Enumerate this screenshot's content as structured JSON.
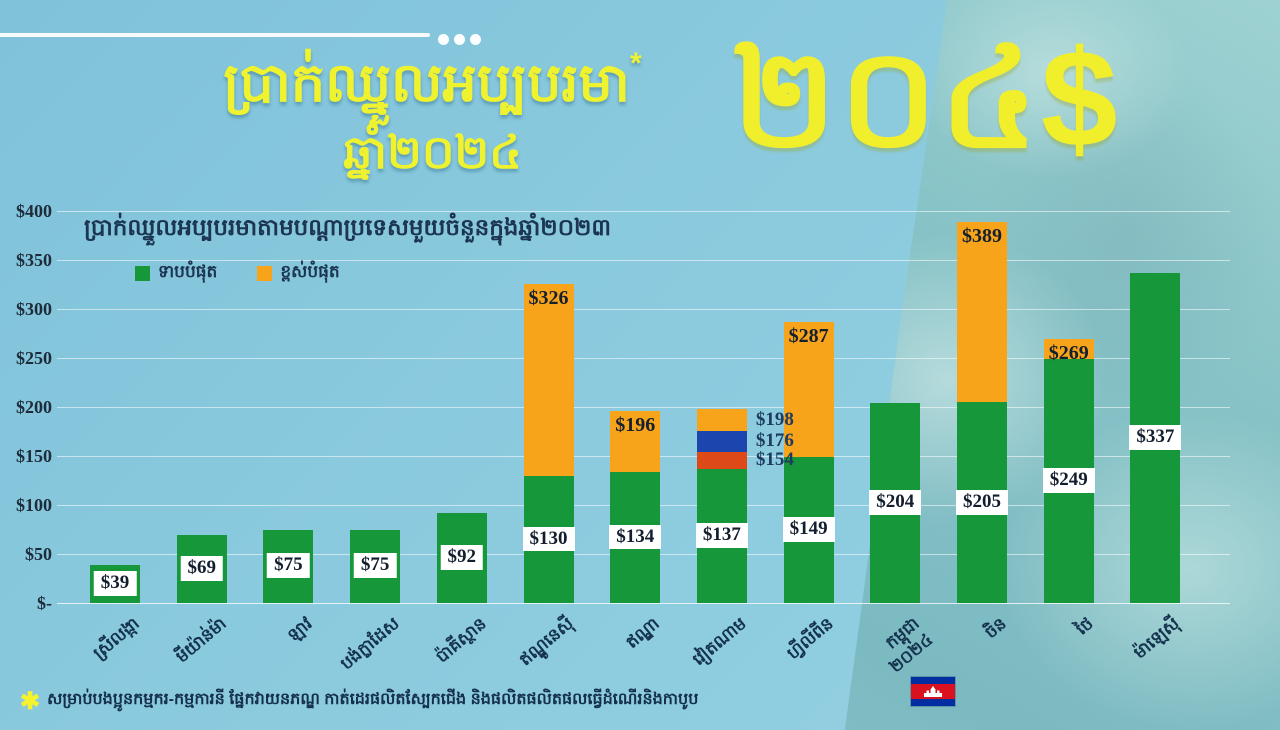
{
  "header": {
    "title": "ប្រាក់ឈ្នួលអប្បបរមា",
    "asterisk": "*",
    "subtitle": "ឆ្នាំ២០២៤",
    "big_value": "២០៤$"
  },
  "chart_data": {
    "type": "bar",
    "stacked": true,
    "title": "ប្រាក់ឈ្នួលអប្បបរមាតាមបណ្តាប្រទេសមួយចំនួនក្នុងឆ្នាំ២០២៣",
    "legend": [
      {
        "label": "ទាបបំផុត",
        "color": "#16983a"
      },
      {
        "label": "ខ្ពស់បំផុត",
        "color": "#f8a41b"
      }
    ],
    "ylim": [
      0,
      400
    ],
    "y_ticks": [
      "$-",
      "$50",
      "$100",
      "$150",
      "$200",
      "$250",
      "$300",
      "$350",
      "$400"
    ],
    "grid": true,
    "legend_position": "top-left",
    "categories": [
      "ស្រីលង្កា",
      "មីយ៉ាន់ម៉ា",
      "ឡាវ",
      "បង់ក្លាដែស",
      "ប៉ាគីស្ថាន",
      "ឥណ្ឌូនេស៊ី",
      "ឥណ្ឌា",
      "វៀតណាម",
      "ហ្វីលីពីន",
      "កម្ពុជា\n២០២៤",
      "ចិន",
      "ថៃ",
      "ម៉ាឡេស៊ី"
    ],
    "bars": [
      {
        "country": "ស្រីលង្កា",
        "min": 39,
        "min_label": "$39"
      },
      {
        "country": "មីយ៉ាន់ម៉ា",
        "min": 69,
        "min_label": "$69"
      },
      {
        "country": "ឡាវ",
        "min": 75,
        "min_label": "$75"
      },
      {
        "country": "បង់ក្លាដែស",
        "min": 75,
        "min_label": "$75"
      },
      {
        "country": "ប៉ាគីស្ថាន",
        "min": 92,
        "min_label": "$92"
      },
      {
        "country": "ឥណ្ឌូនេស៊ី",
        "min": 130,
        "min_label": "$130",
        "max": 326,
        "max_label": "$326"
      },
      {
        "country": "ឥណ្ឌា",
        "min": 134,
        "min_label": "$134",
        "max": 196,
        "max_label": "$196"
      },
      {
        "country": "វៀតណាម",
        "min": 137,
        "min_label": "$137",
        "extra_segments": [
          {
            "value": 154,
            "label": "$154",
            "color": "#dd4a17"
          },
          {
            "value": 176,
            "label": "$176",
            "color": "#1c46ae"
          },
          {
            "value": 198,
            "label": "$198",
            "color": "#f8a41b"
          }
        ],
        "labels_side": true
      },
      {
        "country": "ហ្វីលីពីន",
        "min": 149,
        "min_label": "$149",
        "max": 287,
        "max_label": "$287"
      },
      {
        "country": "កម្ពុជា\n២០២៤",
        "min": 204,
        "min_label": "$204",
        "flag": "cambodia"
      },
      {
        "country": "ចិន",
        "min": 205,
        "min_label": "$205",
        "max": 389,
        "max_label": "$389"
      },
      {
        "country": "ថៃ",
        "min": 249,
        "min_label": "$249",
        "max": 269,
        "max_label": "$269"
      },
      {
        "country": "ម៉ាឡេស៊ី",
        "min": 337,
        "min_label": "$337"
      }
    ]
  },
  "footnote": {
    "marker": "✱",
    "text": "សម្រាប់បងប្អូនកម្មករ-កម្មការនី ផ្នែកវាយនភណ្ឌ កាត់ដេរផលិតស្បែកជើង និងផលិតផលិតផលធ្វើដំណើរនិងកាបូប"
  },
  "colors": {
    "background": "#8bcade",
    "accent_yellow": "#eff22e",
    "lowest_green": "#16983a",
    "highest_orange": "#f8a41b",
    "segment_red": "#dd4a17",
    "segment_blue": "#1c46ae",
    "text_navy": "#1b3553"
  }
}
